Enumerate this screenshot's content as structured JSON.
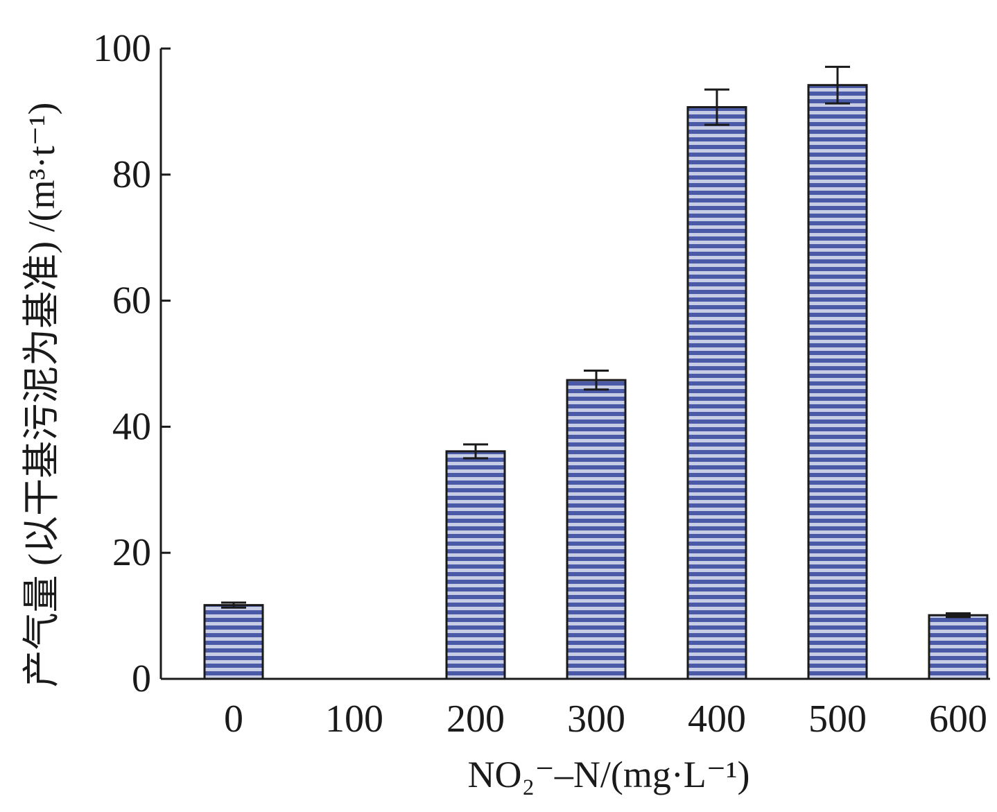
{
  "chart_data": {
    "type": "bar",
    "title": "",
    "xlabel": "NO₂⁻–N/(mg·L⁻¹)",
    "ylabel": "产气量 (以干基污泥为基准) /(m³·t⁻¹)",
    "categories": [
      "0",
      "100",
      "200",
      "300",
      "400",
      "500",
      "600"
    ],
    "values": [
      11.7,
      0,
      36.1,
      47.4,
      90.7,
      94.2,
      10.1
    ],
    "errors": [
      0.4,
      0,
      1.1,
      1.5,
      2.8,
      2.9,
      0.3
    ],
    "ylim": [
      0,
      100
    ],
    "yticks": [
      "0",
      "20",
      "40",
      "60",
      "80",
      "100"
    ],
    "ytick_values": [
      0,
      20,
      40,
      60,
      80,
      100
    ],
    "grid": false,
    "legend": "none",
    "colors": {
      "bar_fill": "#4a5aa6",
      "bar_stripe": "#c8cde6",
      "bar_edge": "#1a1a1a",
      "axis": "#1a1a1a"
    }
  }
}
